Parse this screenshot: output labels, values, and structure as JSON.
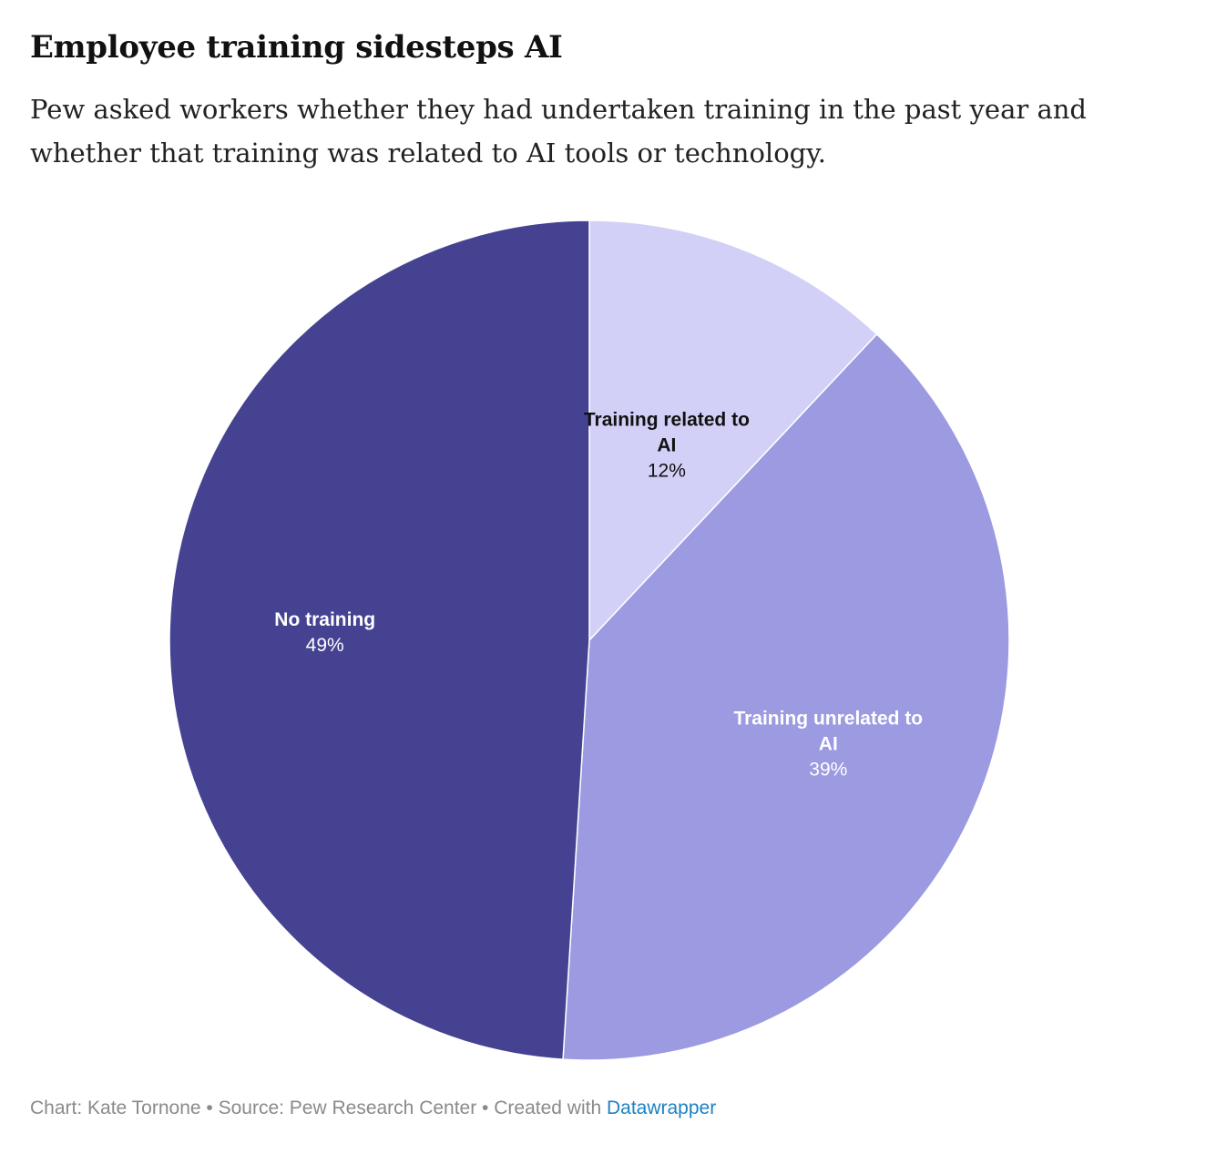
{
  "header": {
    "title": "Employee training sidesteps AI",
    "subtitle": "Pew asked workers whether they had undertaken training in the past year and whether that training was related to AI tools or technology."
  },
  "chart_data": {
    "type": "pie",
    "title": "Employee training sidesteps AI",
    "subtitle": "Pew asked workers whether they had undertaken training in the past year and whether that training was related to AI tools or technology.",
    "slices": [
      {
        "label_lines": [
          "Training related to",
          "AI"
        ],
        "label": "Training related to AI",
        "value": 12,
        "value_label": "12%",
        "color": "#d2d0f7",
        "label_color": "#111111"
      },
      {
        "label_lines": [
          "Training unrelated to",
          "AI"
        ],
        "label": "Training unrelated to AI",
        "value": 39,
        "value_label": "39%",
        "color": "#9c9ae0",
        "label_color": "#ffffff"
      },
      {
        "label_lines": [
          "No training"
        ],
        "label": "No training",
        "value": 49,
        "value_label": "49%",
        "color": "#454391",
        "label_color": "#ffffff"
      }
    ],
    "start": "top",
    "direction": "clockwise"
  },
  "footer": {
    "credit": "Chart: Kate Tornone • Source: Pew Research Center • Created with ",
    "link_text": "Datawrapper"
  }
}
